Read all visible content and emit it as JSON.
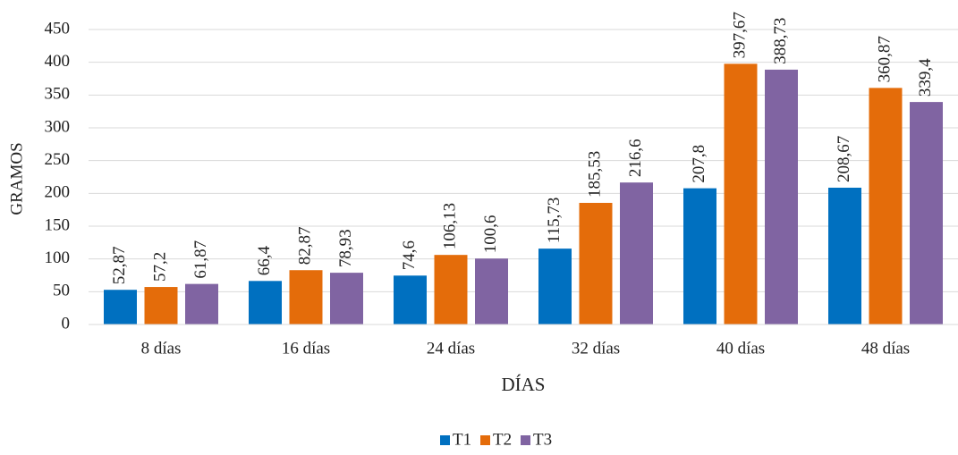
{
  "chart_data": {
    "type": "bar",
    "categories": [
      "8 días",
      "16 días",
      "24 días",
      "32 días",
      "40 días",
      "48 días"
    ],
    "series": [
      {
        "name": "T1",
        "color": "#0070c0",
        "values": [
          52.87,
          66.4,
          74.6,
          115.73,
          207.8,
          208.67
        ],
        "value_labels": [
          "52,87",
          "66,4",
          "74,6",
          "115,73",
          "207,8",
          "208,67"
        ]
      },
      {
        "name": "T2",
        "color": "#e46c0a",
        "values": [
          57.2,
          82.87,
          106.13,
          185.53,
          397.67,
          360.87
        ],
        "value_labels": [
          "57,2",
          "82,87",
          "106,13",
          "185,53",
          "397,67",
          "360,87"
        ]
      },
      {
        "name": "T3",
        "color": "#8064a2",
        "values": [
          61.87,
          78.93,
          100.6,
          216.6,
          388.73,
          339.4
        ],
        "value_labels": [
          "61,87",
          "78,93",
          "100,6",
          "216,6",
          "388,73",
          "339,4"
        ]
      }
    ],
    "xlabel": "DÍAS",
    "ylabel": "GRAMOS",
    "ylim": [
      0,
      450
    ],
    "yticks": [
      0,
      50,
      100,
      150,
      200,
      250,
      300,
      350,
      400,
      450
    ],
    "grid": true,
    "legend": "bottom"
  }
}
